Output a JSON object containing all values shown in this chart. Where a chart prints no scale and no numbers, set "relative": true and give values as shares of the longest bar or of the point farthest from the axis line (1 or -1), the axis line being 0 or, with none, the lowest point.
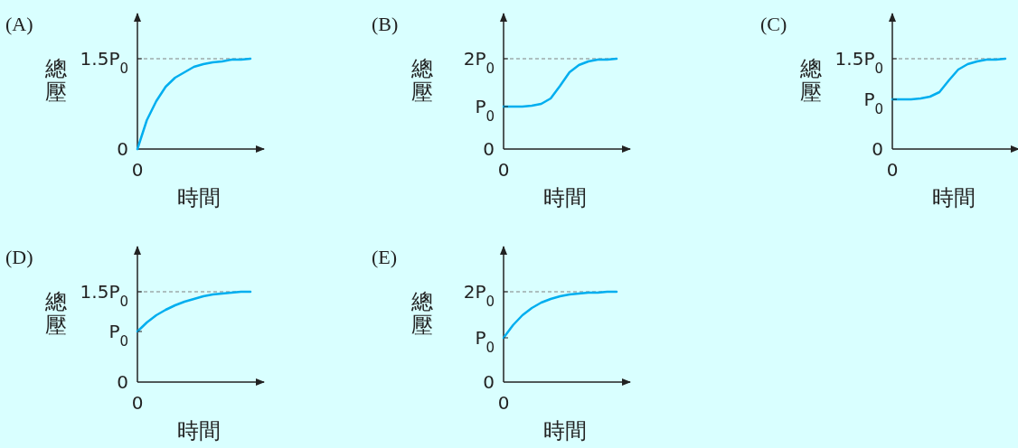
{
  "chart_data": [
    {
      "type": "line",
      "relative": true,
      "title": "(A)",
      "xlabel": "時間",
      "ylabel": "總壓",
      "categories": [
        null,
        null,
        null,
        null,
        null,
        null,
        null,
        null,
        null,
        null,
        null,
        null,
        null
      ],
      "values": [
        0,
        0.32,
        0.53,
        0.69,
        0.79,
        0.85,
        0.91,
        0.94,
        0.96,
        0.97,
        0.99,
        0.99,
        1
      ],
      "color": "#00aeef",
      "ref_lines": [
        {
          "axis": "y",
          "value": 1,
          "label": "1.5P$_{0}$",
          "color": "#808080",
          "line_style": "dashed"
        }
      ],
      "annotations": [
        "0",
        "0"
      ]
    },
    {
      "type": "line",
      "relative": true,
      "title": "(B)",
      "xlabel": "時間",
      "ylabel": "總壓",
      "categories": [
        null,
        null,
        null,
        null,
        null,
        null,
        null,
        null,
        null,
        null,
        null,
        null,
        null
      ],
      "values": [
        0.47,
        0.47,
        0.47,
        0.48,
        0.5,
        0.56,
        0.7,
        0.85,
        0.93,
        0.97,
        0.99,
        0.99,
        1
      ],
      "color": "#00aeef",
      "ref_lines": [
        {
          "axis": "y",
          "value": 1,
          "label": "2P$_{0}$",
          "color": "#808080",
          "line_style": "dashed"
        }
      ],
      "annotations": [
        "0",
        "0",
        "P$_{0}$"
      ]
    },
    {
      "type": "line",
      "relative": true,
      "title": "(C)",
      "xlabel": "時間",
      "ylabel": "總壓",
      "categories": [
        null,
        null,
        null,
        null,
        null,
        null,
        null,
        null,
        null,
        null,
        null,
        null,
        null
      ],
      "values": [
        0.55,
        0.55,
        0.55,
        0.56,
        0.58,
        0.63,
        0.76,
        0.88,
        0.94,
        0.97,
        0.99,
        0.99,
        1
      ],
      "color": "#00aeef",
      "ref_lines": [
        {
          "axis": "y",
          "value": 1,
          "label": "1.5P$_{0}$",
          "color": "#808080",
          "line_style": "dashed"
        }
      ],
      "annotations": [
        "0",
        "0",
        "P$_{0}$"
      ]
    },
    {
      "type": "line",
      "relative": true,
      "title": "(D)",
      "xlabel": "時間",
      "ylabel": "總壓",
      "categories": [
        null,
        null,
        null,
        null,
        null,
        null,
        null,
        null,
        null,
        null,
        null,
        null,
        null
      ],
      "values": [
        0.56,
        0.66,
        0.74,
        0.8,
        0.85,
        0.89,
        0.92,
        0.95,
        0.97,
        0.98,
        0.99,
        1,
        1
      ],
      "color": "#00aeef",
      "ref_lines": [
        {
          "axis": "y",
          "value": 1,
          "label": "1.5P$_{0}$",
          "color": "#808080",
          "line_style": "dashed"
        }
      ],
      "annotations": [
        "0",
        "0",
        "P$_{0}$"
      ]
    },
    {
      "type": "line",
      "relative": true,
      "title": "(E)",
      "xlabel": "時間",
      "ylabel": "總壓",
      "categories": [
        null,
        null,
        null,
        null,
        null,
        null,
        null,
        null,
        null,
        null,
        null,
        null,
        null
      ],
      "values": [
        0.49,
        0.63,
        0.74,
        0.82,
        0.88,
        0.92,
        0.95,
        0.97,
        0.98,
        0.99,
        0.99,
        1,
        1
      ],
      "color": "#00aeef",
      "ref_lines": [
        {
          "axis": "y",
          "value": 1,
          "label": "2P$_{0}$",
          "color": "#808080",
          "line_style": "dashed"
        }
      ],
      "annotations": [
        "0",
        "0",
        "P$_{0}$"
      ]
    }
  ]
}
